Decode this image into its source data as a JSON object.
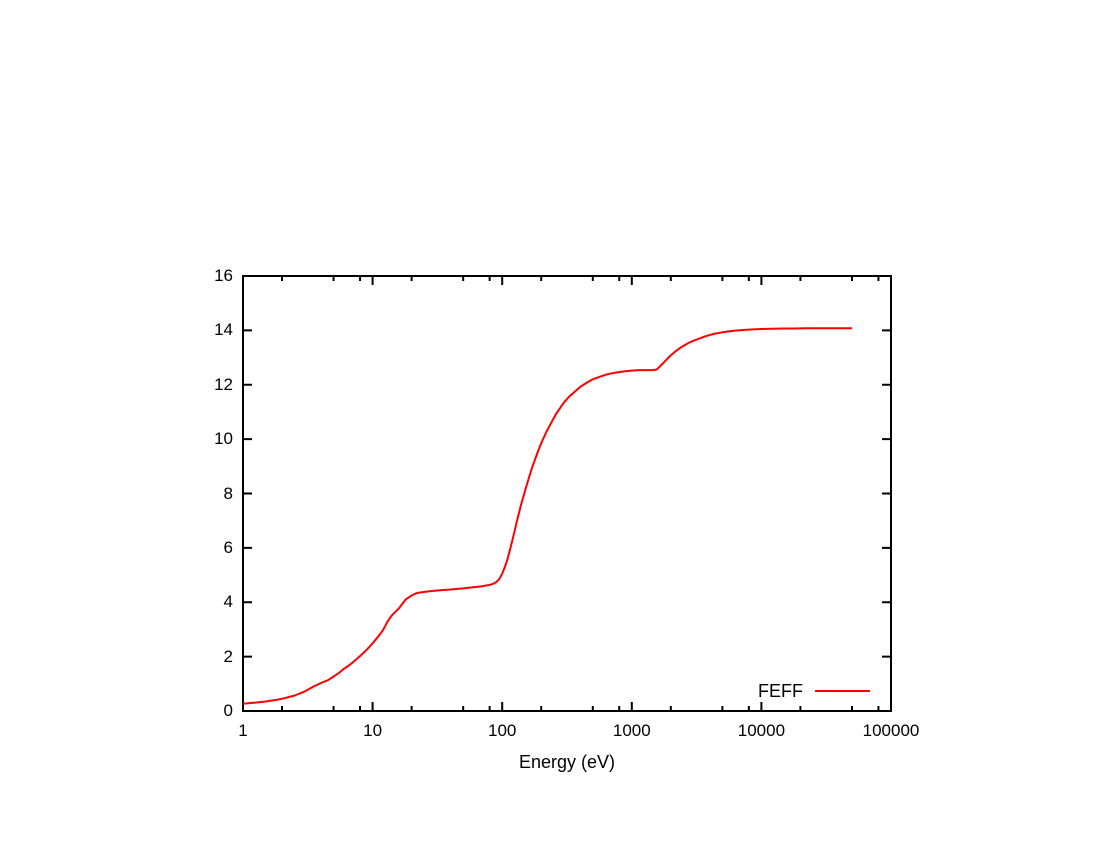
{
  "page": {
    "background_color": "#ffffff",
    "frame_color": "#000000",
    "text_color": "#000000"
  },
  "chart_data": {
    "type": "line",
    "title": "",
    "xlabel": "Energy (eV)",
    "ylabel": "",
    "x_scale": "log10",
    "xlim": [
      1,
      100000
    ],
    "ylim": [
      0,
      16
    ],
    "grid": false,
    "x_major_ticks": [
      1,
      10,
      100,
      1000,
      10000,
      100000
    ],
    "x_major_tick_labels": [
      "1",
      "10",
      "100",
      "1000",
      "10000",
      "100000"
    ],
    "x_minor_tick_mantissas": [
      2,
      5,
      8
    ],
    "y_major_ticks": [
      0,
      2,
      4,
      6,
      8,
      10,
      12,
      14,
      16
    ],
    "y_major_tick_labels": [
      "0",
      "2",
      "4",
      "6",
      "8",
      "10",
      "12",
      "14",
      "16"
    ],
    "legend": {
      "position": "inside-bottom-right",
      "entries": [
        {
          "label": "FEFF",
          "color": "#ff0000",
          "style": "solid-line"
        }
      ]
    },
    "series": [
      {
        "name": "FEFF",
        "color": "#ff0000",
        "line_width": 2,
        "points": [
          [
            1,
            0.27
          ],
          [
            1.2,
            0.3
          ],
          [
            1.5,
            0.35
          ],
          [
            1.8,
            0.41
          ],
          [
            2,
            0.45
          ],
          [
            2.5,
            0.57
          ],
          [
            3,
            0.72
          ],
          [
            3.5,
            0.9
          ],
          [
            4,
            1.03
          ],
          [
            4.5,
            1.13
          ],
          [
            5,
            1.27
          ],
          [
            5.5,
            1.4
          ],
          [
            6,
            1.55
          ],
          [
            6.5,
            1.66
          ],
          [
            7,
            1.78
          ],
          [
            8,
            2.02
          ],
          [
            9,
            2.25
          ],
          [
            10,
            2.49
          ],
          [
            11,
            2.73
          ],
          [
            12,
            2.97
          ],
          [
            13,
            3.28
          ],
          [
            14,
            3.5
          ],
          [
            15,
            3.65
          ],
          [
            16,
            3.78
          ],
          [
            17,
            3.95
          ],
          [
            18,
            4.1
          ],
          [
            19,
            4.18
          ],
          [
            20,
            4.25
          ],
          [
            21,
            4.3
          ],
          [
            22,
            4.34
          ],
          [
            24,
            4.37
          ],
          [
            27,
            4.4
          ],
          [
            30,
            4.42
          ],
          [
            35,
            4.45
          ],
          [
            40,
            4.47
          ],
          [
            45,
            4.49
          ],
          [
            50,
            4.51
          ],
          [
            60,
            4.55
          ],
          [
            70,
            4.59
          ],
          [
            80,
            4.64
          ],
          [
            85,
            4.68
          ],
          [
            90,
            4.74
          ],
          [
            95,
            4.85
          ],
          [
            100,
            5.05
          ],
          [
            105,
            5.3
          ],
          [
            110,
            5.6
          ],
          [
            115,
            5.95
          ],
          [
            120,
            6.3
          ],
          [
            125,
            6.65
          ],
          [
            130,
            7.0
          ],
          [
            135,
            7.3
          ],
          [
            140,
            7.6
          ],
          [
            145,
            7.85
          ],
          [
            150,
            8.1
          ],
          [
            160,
            8.55
          ],
          [
            170,
            8.95
          ],
          [
            180,
            9.28
          ],
          [
            190,
            9.58
          ],
          [
            200,
            9.85
          ],
          [
            220,
            10.28
          ],
          [
            240,
            10.62
          ],
          [
            260,
            10.92
          ],
          [
            280,
            11.15
          ],
          [
            300,
            11.35
          ],
          [
            330,
            11.57
          ],
          [
            360,
            11.73
          ],
          [
            400,
            11.92
          ],
          [
            450,
            12.08
          ],
          [
            500,
            12.2
          ],
          [
            560,
            12.29
          ],
          [
            630,
            12.37
          ],
          [
            700,
            12.42
          ],
          [
            800,
            12.47
          ],
          [
            900,
            12.5
          ],
          [
            1000,
            12.52
          ],
          [
            1150,
            12.54
          ],
          [
            1300,
            12.54
          ],
          [
            1450,
            12.54
          ],
          [
            1560,
            12.56
          ],
          [
            1650,
            12.68
          ],
          [
            1750,
            12.8
          ],
          [
            1850,
            12.92
          ],
          [
            2000,
            13.08
          ],
          [
            2200,
            13.25
          ],
          [
            2400,
            13.38
          ],
          [
            2700,
            13.52
          ],
          [
            3000,
            13.62
          ],
          [
            3400,
            13.72
          ],
          [
            3800,
            13.8
          ],
          [
            4300,
            13.87
          ],
          [
            5000,
            13.93
          ],
          [
            6000,
            13.98
          ],
          [
            7000,
            14.01
          ],
          [
            8000,
            14.03
          ],
          [
            9000,
            14.04
          ],
          [
            10000,
            14.05
          ],
          [
            12000,
            14.06
          ],
          [
            15000,
            14.07
          ],
          [
            18000,
            14.07
          ],
          [
            22000,
            14.08
          ],
          [
            27000,
            14.08
          ],
          [
            33000,
            14.08
          ],
          [
            40000,
            14.08
          ],
          [
            50000,
            14.08
          ]
        ]
      }
    ]
  }
}
